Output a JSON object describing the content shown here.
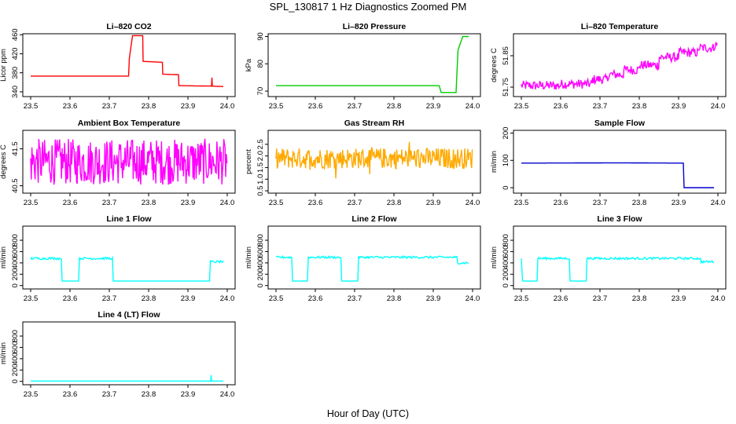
{
  "figure": {
    "title": "SPL_130817  1 Hz Diagnostics Zoomed PM",
    "xlabel": "Hour of Day (UTC)"
  },
  "chart_data": [
    {
      "type": "line",
      "title": "Li–820 CO2",
      "ylabel": "Licor ppm",
      "color": "#ff0000",
      "xlim": [
        23.5,
        24.0
      ],
      "ylim": [
        330,
        462
      ],
      "yticks": [
        340,
        380,
        420,
        460
      ],
      "ytick_labels": [
        "340",
        "380",
        "420",
        "460"
      ],
      "xticks": [
        23.5,
        23.6,
        23.7,
        23.8,
        23.9,
        24.0
      ],
      "xtick_labels": [
        "23.5",
        "23.6",
        "23.7",
        "23.8",
        "23.9",
        "24.0"
      ],
      "x": [
        23.5,
        23.749,
        23.751,
        23.759,
        23.76,
        23.785,
        23.786,
        23.835,
        23.836,
        23.876,
        23.877,
        23.96,
        23.961,
        23.962,
        23.99
      ],
      "y": [
        373,
        373,
        410,
        458,
        458,
        458,
        404,
        402,
        377,
        376,
        353,
        352,
        370,
        352,
        351
      ]
    },
    {
      "type": "line",
      "title": "Li–820 Pressure",
      "ylabel": "kPa",
      "color": "#00cc00",
      "xlim": [
        23.5,
        24.0
      ],
      "ylim": [
        68,
        91
      ],
      "yticks": [
        70,
        80,
        90
      ],
      "ytick_labels": [
        "70",
        "80",
        "90"
      ],
      "xticks": [
        23.5,
        23.6,
        23.7,
        23.8,
        23.9,
        24.0
      ],
      "xtick_labels": [
        "23.5",
        "23.6",
        "23.7",
        "23.8",
        "23.9",
        "24.0"
      ],
      "x": [
        23.5,
        23.915,
        23.92,
        23.958,
        23.963,
        23.97,
        23.975,
        23.99
      ],
      "y": [
        72,
        72,
        69.5,
        69.5,
        85,
        88,
        90,
        90
      ]
    },
    {
      "type": "line",
      "title": "Li–820 Temperature",
      "ylabel": "degrees C",
      "color": "#ff00ff",
      "xlim": [
        23.5,
        24.0
      ],
      "ylim": [
        51.72,
        51.92
      ],
      "yticks": [
        51.75,
        51.85
      ],
      "ytick_labels": [
        "51.75",
        "51.85"
      ],
      "xticks": [
        23.5,
        23.6,
        23.7,
        23.8,
        23.9,
        24.0
      ],
      "xtick_labels": [
        "23.5",
        "23.6",
        "23.7",
        "23.8",
        "23.9",
        "24.0"
      ],
      "x": [
        23.5,
        23.6,
        23.68,
        23.72,
        23.76,
        23.8,
        23.85,
        23.9,
        23.95,
        23.99
      ],
      "y": [
        51.755,
        51.76,
        51.775,
        51.79,
        51.805,
        51.82,
        51.845,
        51.86,
        51.875,
        51.885
      ]
    },
    {
      "type": "line",
      "title": "Ambient Box Temperature",
      "ylabel": "degrees C",
      "color": "#ff00ff",
      "xlim": [
        23.5,
        24.0
      ],
      "ylim": [
        40.3,
        42.0
      ],
      "yticks": [
        40.5,
        41.5
      ],
      "ytick_labels": [
        "40.5",
        "41.5"
      ],
      "xticks": [
        23.5,
        23.6,
        23.7,
        23.8,
        23.9,
        24.0
      ],
      "xtick_labels": [
        "23.5",
        "23.6",
        "23.7",
        "23.8",
        "23.9",
        "24.0"
      ],
      "x": [
        23.5,
        23.99
      ],
      "y": [
        41.15,
        41.15
      ]
    },
    {
      "type": "line",
      "title": "Gas Stream RH",
      "ylabel": "percent",
      "color": "#ffaa00",
      "xlim": [
        23.5,
        24.0
      ],
      "ylim": [
        0.4,
        3.1
      ],
      "yticks": [
        0.5,
        1.0,
        1.5,
        2.0,
        2.5
      ],
      "ytick_labels": [
        "0.5",
        "1.0",
        "1.5",
        "2.0",
        "2.5"
      ],
      "xticks": [
        23.5,
        23.6,
        23.7,
        23.8,
        23.9,
        24.0
      ],
      "xtick_labels": [
        "23.5",
        "23.6",
        "23.7",
        "23.8",
        "23.9",
        "24.0"
      ],
      "x": [
        23.5,
        23.99
      ],
      "y": [
        1.9,
        1.9
      ]
    },
    {
      "type": "line",
      "title": "Sample Flow",
      "ylabel": "ml/min",
      "color": "#0000cc",
      "xlim": [
        23.5,
        24.0
      ],
      "ylim": [
        -20,
        210
      ],
      "yticks": [
        0,
        100,
        200
      ],
      "ytick_labels": [
        "0",
        "100",
        "200"
      ],
      "xticks": [
        23.5,
        23.6,
        23.7,
        23.8,
        23.9,
        24.0
      ],
      "xtick_labels": [
        "23.5",
        "23.6",
        "23.7",
        "23.8",
        "23.9",
        "24.0"
      ],
      "x": [
        23.5,
        23.75,
        23.912,
        23.914,
        23.92,
        23.99
      ],
      "y": [
        90,
        91,
        90,
        0,
        0,
        0
      ]
    },
    {
      "type": "line",
      "title": "Line 1 Flow",
      "ylabel": "ml/min",
      "color": "#00ffff",
      "xlim": [
        23.5,
        24.0
      ],
      "ylim": [
        -60,
        1050
      ],
      "yticks": [
        0,
        200,
        400,
        600,
        800
      ],
      "ytick_labels": [
        "0",
        "200",
        "400",
        "600",
        "800"
      ],
      "xticks": [
        23.5,
        23.6,
        23.7,
        23.8,
        23.9,
        24.0
      ],
      "xtick_labels": [
        "23.5",
        "23.6",
        "23.7",
        "23.8",
        "23.9",
        "24.0"
      ],
      "x": [
        23.5,
        23.503,
        23.578,
        23.58,
        23.622,
        23.624,
        23.708,
        23.71,
        23.955,
        23.957,
        23.99
      ],
      "y": [
        480,
        480,
        480,
        80,
        80,
        480,
        480,
        80,
        80,
        420,
        420
      ]
    },
    {
      "type": "line",
      "title": "Line 2 Flow",
      "ylabel": "ml/min",
      "color": "#00ffff",
      "xlim": [
        23.5,
        24.0
      ],
      "ylim": [
        -60,
        1050
      ],
      "yticks": [
        0,
        200,
        400,
        600,
        800
      ],
      "ytick_labels": [
        "0",
        "200",
        "400",
        "600",
        "800"
      ],
      "xticks": [
        23.5,
        23.6,
        23.7,
        23.8,
        23.9,
        24.0
      ],
      "xtick_labels": [
        "23.5",
        "23.6",
        "23.7",
        "23.8",
        "23.9",
        "24.0"
      ],
      "x": [
        23.5,
        23.54,
        23.542,
        23.58,
        23.582,
        23.665,
        23.667,
        23.708,
        23.71,
        23.96,
        23.962,
        23.99
      ],
      "y": [
        500,
        500,
        80,
        80,
        500,
        500,
        80,
        80,
        500,
        500,
        400,
        400
      ]
    },
    {
      "type": "line",
      "title": "Line 3 Flow",
      "ylabel": "ml/min",
      "color": "#00ffff",
      "xlim": [
        23.5,
        24.0
      ],
      "ylim": [
        -60,
        1050
      ],
      "yticks": [
        0,
        200,
        400,
        600,
        800
      ],
      "ytick_labels": [
        "0",
        "200",
        "400",
        "600",
        "800"
      ],
      "xticks": [
        23.5,
        23.6,
        23.7,
        23.8,
        23.9,
        24.0
      ],
      "xtick_labels": [
        "23.5",
        "23.6",
        "23.7",
        "23.8",
        "23.9",
        "24.0"
      ],
      "x": [
        23.5,
        23.503,
        23.54,
        23.542,
        23.622,
        23.624,
        23.665,
        23.667,
        23.955,
        23.957,
        23.99
      ],
      "y": [
        480,
        80,
        80,
        480,
        480,
        80,
        80,
        480,
        480,
        420,
        420
      ]
    },
    {
      "type": "line",
      "title": "Line 4 (LT) Flow",
      "ylabel": "ml/min",
      "color": "#00ffff",
      "xlim": [
        23.5,
        24.0
      ],
      "ylim": [
        -60,
        1050
      ],
      "yticks": [
        0,
        200,
        400,
        600,
        800
      ],
      "ytick_labels": [
        "0",
        "200",
        "400",
        "600",
        "800"
      ],
      "xticks": [
        23.5,
        23.6,
        23.7,
        23.8,
        23.9,
        24.0
      ],
      "xtick_labels": [
        "23.5",
        "23.6",
        "23.7",
        "23.8",
        "23.9",
        "24.0"
      ],
      "x": [
        23.5,
        23.958,
        23.959,
        23.96,
        23.99
      ],
      "y": [
        5,
        5,
        110,
        5,
        5
      ]
    }
  ]
}
